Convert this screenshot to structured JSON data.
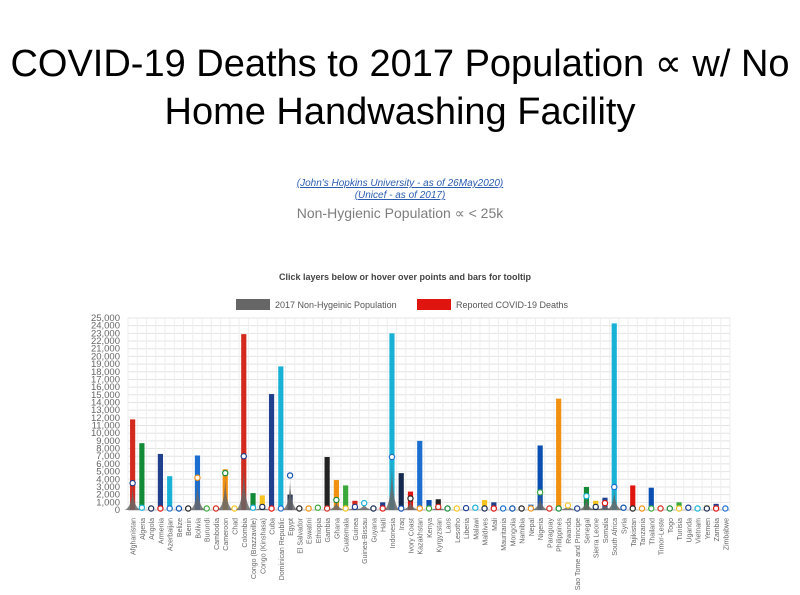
{
  "title": "COVID-19 Deaths to 2017 Population ∝ w/ No Home Handwashing Facility",
  "links": [
    "(John's Hopkins University - as of 26May2020)",
    "(Unicef - as of 2017)"
  ],
  "subtitle": "Non-Hygienic Population ∝ < 25k",
  "chart_data": {
    "type": "bar",
    "instruction": "Click layers below or hover over points and bars for tooltip",
    "legend_position": "top",
    "grid": true,
    "ylim": [
      0,
      25000
    ],
    "yticks": [
      "0",
      "1,000",
      "2,000",
      "3,000",
      "4,000",
      "5,000",
      "6,000",
      "7,000",
      "8,000",
      "9,000",
      "10,000",
      "11,000",
      "12,000",
      "13,000",
      "14,000",
      "15,000",
      "16,000",
      "17,000",
      "18,000",
      "19,000",
      "20,000",
      "21,000",
      "22,000",
      "23,000",
      "24,000",
      "25,000"
    ],
    "categories": [
      "Afghanistan",
      "Algeria",
      "Angola",
      "Armenia",
      "Azerbaijan",
      "Belize",
      "Benin",
      "Bolivia",
      "Burundi",
      "Cambodia",
      "Cameroon",
      "Chad",
      "Colombia",
      "Congo (Brazzaville)",
      "Congo (Kinshasa)",
      "Cuba",
      "Dominican Republic",
      "Egypt",
      "El Salvador",
      "Eswatini",
      "Ethiopia",
      "Gambia",
      "Ghana",
      "Guatemala",
      "Guinea",
      "Guinea-Bissau",
      "Guyana",
      "Haiti",
      "Indonesia",
      "Iraq",
      "Ivory Coast",
      "Kazakhstan",
      "Kenya",
      "Kyrgyzstan",
      "Laos",
      "Lesotho",
      "Liberia",
      "Malawi",
      "Maldives",
      "Mali",
      "Mauritania",
      "Mongolia",
      "Namibia",
      "Nepal",
      "Nigeria",
      "Paraguay",
      "Philippines",
      "Rwanda",
      "Sao Tome and Principe",
      "Senegal",
      "Sierra Leone",
      "Somalia",
      "South Africa",
      "Syria",
      "Tajikistan",
      "Tanzania",
      "Thailand",
      "Timor-Leste",
      "Togo",
      "Tunisia",
      "Uganda",
      "Vietnam",
      "Yemen",
      "Zambia",
      "Zimbabwe"
    ],
    "series": [
      {
        "name": "2017 Non-Hygeinic Population",
        "color": "#666666",
        "values": [
          3500,
          300,
          100,
          100,
          200,
          0,
          50,
          4200,
          200,
          100,
          4800,
          150,
          7000,
          300,
          400,
          100,
          200,
          4500,
          100,
          100,
          300,
          200,
          1300,
          200,
          400,
          900,
          50,
          200,
          6900,
          150,
          1500,
          200,
          200,
          400,
          200,
          100,
          250,
          300,
          200,
          150,
          200,
          50,
          100,
          200,
          2300,
          100,
          200,
          600,
          50,
          1800,
          400,
          900,
          3000,
          300,
          150,
          100,
          100,
          200,
          200,
          100,
          300,
          200,
          200,
          100,
          200
        ]
      },
      {
        "name": "Reported COVID-19 Deaths",
        "color": "#e0150f",
        "values": [
          11800,
          8700,
          0,
          7300,
          4400,
          0,
          0,
          7100,
          0,
          0,
          5300,
          0,
          22900,
          2200,
          1900,
          15100,
          18700,
          2000,
          0,
          500,
          0,
          6900,
          3900,
          3200,
          1200,
          0,
          0,
          1000,
          23000,
          4800,
          2400,
          9000,
          1300,
          1400,
          0,
          0,
          0,
          0,
          1300,
          1000,
          0,
          0,
          0,
          700,
          8400,
          300,
          14500,
          0,
          0,
          3000,
          1200,
          1600,
          24300,
          0,
          3200,
          0,
          2900,
          0,
          0,
          1000,
          0,
          0,
          600,
          800,
          100
        ]
      }
    ]
  }
}
